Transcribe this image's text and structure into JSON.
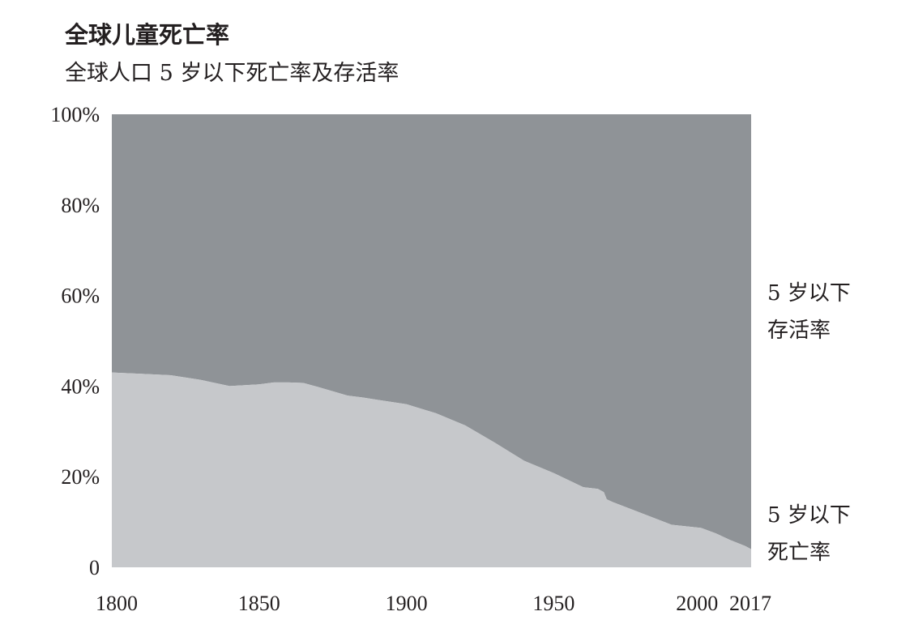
{
  "title": "全球儿童死亡率",
  "subtitle": "全球人口 5 岁以下死亡率及存活率",
  "colors": {
    "survival": "#8f9397",
    "mortality": "#c6c8cb"
  },
  "chart_data": {
    "type": "area",
    "stacked": true,
    "title": "全球儿童死亡率",
    "subtitle": "全球人口 5 岁以下死亡率及存活率",
    "xlabel": "",
    "ylabel": "",
    "xlim": [
      1800,
      2017
    ],
    "ylim": [
      0,
      100
    ],
    "x_ticks": [
      "1800",
      "1850",
      "1900",
      "1950",
      "2000",
      "2017"
    ],
    "x_tick_values": [
      1800,
      1850,
      1900,
      1950,
      2000,
      2017
    ],
    "y_ticks": [
      "0",
      "20%",
      "40%",
      "60%",
      "80%",
      "100%"
    ],
    "y_tick_values": [
      0,
      20,
      40,
      60,
      80,
      100
    ],
    "grid": false,
    "series": [
      {
        "name": "5 岁以下死亡率",
        "label_lines": [
          "5 岁以下",
          "死亡率"
        ],
        "x": [
          1800,
          1810,
          1820,
          1830,
          1840,
          1850,
          1855,
          1860,
          1865,
          1870,
          1880,
          1885,
          1890,
          1900,
          1910,
          1920,
          1930,
          1940,
          1950,
          1960,
          1965,
          1967,
          1968,
          1970,
          1980,
          1990,
          2000,
          2005,
          2010,
          2015,
          2017
        ],
        "values": [
          43.0,
          42.7,
          42.4,
          41.4,
          40.0,
          40.4,
          40.8,
          40.8,
          40.7,
          39.8,
          37.9,
          37.5,
          37.0,
          36.0,
          34.0,
          31.3,
          27.5,
          23.5,
          20.8,
          17.7,
          17.3,
          16.6,
          15.0,
          14.4,
          11.9,
          9.4,
          8.7,
          7.5,
          6.0,
          4.7,
          4.0
        ]
      },
      {
        "name": "5 岁以下存活率",
        "label_lines": [
          "5 岁以下",
          "存活率"
        ],
        "fill_to": 100
      }
    ]
  }
}
